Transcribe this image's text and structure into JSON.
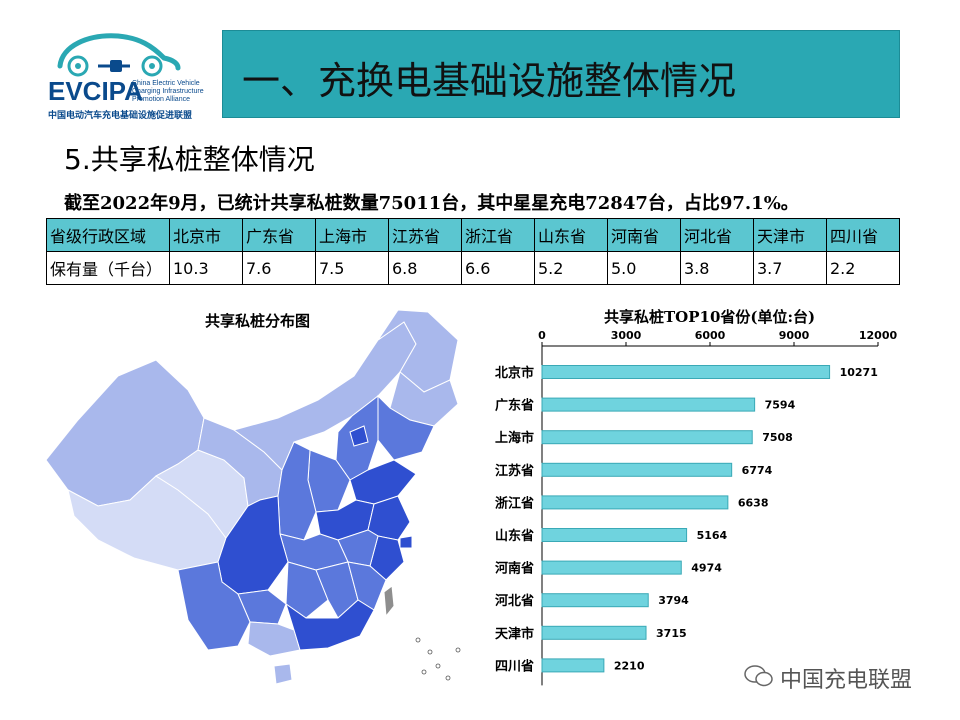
{
  "logo": {
    "name": "EVCIPA",
    "english": "China Electric Vehicle Charging Infrastructure Promotion Alliance",
    "chinese": "中国电动汽车充电基础设施促进联盟"
  },
  "header": {
    "title": "一、充换电基础设施整体情况"
  },
  "section": {
    "title": "5.共享私桩整体情况"
  },
  "summary": {
    "text": "截至2022年9月，已统计共享私桩数量75011台，其中星星充电72847台，占比97.1%。"
  },
  "table": {
    "row_header": "省级行政区域",
    "value_header": "保有量（千台）",
    "provinces": [
      "北京市",
      "广东省",
      "上海市",
      "江苏省",
      "浙江省",
      "山东省",
      "河南省",
      "河北省",
      "天津市",
      "四川省"
    ],
    "values": [
      "10.3",
      "7.6",
      "7.5",
      "6.8",
      "6.6",
      "5.2",
      "5.0",
      "3.8",
      "3.7",
      "2.2"
    ]
  },
  "map": {
    "title": "共享私桩分布图",
    "colors": {
      "dark": "#2f4fd0",
      "mid": "#5b78dc",
      "light": "#a9b8ec",
      "pale": "#d4dcf6",
      "taiwan": "#8e8e8e"
    }
  },
  "chart_data": {
    "type": "bar",
    "orientation": "horizontal",
    "title": "共享私桩TOP10省份(单位:台)",
    "categories": [
      "北京市",
      "广东省",
      "上海市",
      "江苏省",
      "浙江省",
      "山东省",
      "河南省",
      "河北省",
      "天津市",
      "四川省"
    ],
    "category_labels": [
      "北京市",
      "广东省",
      "上海市",
      "江苏省",
      "浙江省",
      "山东省",
      "河南省",
      "河北省",
      "天津市",
      "四川省"
    ],
    "values": [
      10271,
      7594,
      7508,
      6774,
      6638,
      5164,
      4974,
      3794,
      3715,
      2210
    ],
    "xlim": [
      0,
      12000
    ],
    "ticks": [
      0,
      3000,
      6000,
      9000,
      12000
    ],
    "axis_position": "top",
    "bar_color": "#6fd3de",
    "bar_border": "#3aa9b6",
    "grid": false,
    "data_labels": true
  },
  "watermark": {
    "text": "中国充电联盟"
  }
}
